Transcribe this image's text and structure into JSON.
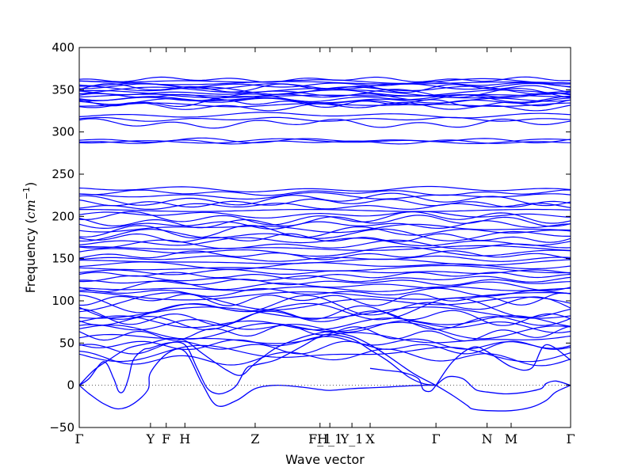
{
  "chart_data": {
    "type": "line",
    "title": "",
    "xlabel": "Wave vector",
    "ylabel": "Frequency (cm⁻¹)",
    "ylabel_parts": {
      "prefix": "Frequency (",
      "unit": "cm",
      "exponent": "−1",
      "suffix": ")"
    },
    "ylim": [
      -50,
      400
    ],
    "yticks": [
      -50,
      0,
      50,
      100,
      150,
      200,
      250,
      300,
      350,
      400
    ],
    "xlim": [
      0,
      1
    ],
    "grid": false,
    "legend": "none",
    "line_color": "#0000ff",
    "zero_line": {
      "y": 0,
      "style": "dotted",
      "color": "#555555"
    },
    "kpoints": [
      {
        "label": "Γ",
        "x": 0.0
      },
      {
        "label": "Y",
        "x": 0.145
      },
      {
        "label": "F",
        "x": 0.177
      },
      {
        "label": "H",
        "x": 0.215
      },
      {
        "label": "Z",
        "x": 0.358
      },
      {
        "label": "F_1",
        "x": 0.49
      },
      {
        "label": "H_1",
        "x": 0.51
      },
      {
        "label": "Y_1",
        "x": 0.555
      },
      {
        "label": "X",
        "x": 0.592
      },
      {
        "label": "Γ",
        "x": 0.726
      },
      {
        "label": "N",
        "x": 0.83
      },
      {
        "label": "M",
        "x": 0.879
      },
      {
        "label": "Γ",
        "x": 1.0
      }
    ],
    "series_acoustic": [
      {
        "x": [
          0.0,
          0.02,
          0.05,
          0.08,
          0.11,
          0.14,
          0.145,
          0.18,
          0.215,
          0.25,
          0.28,
          0.32,
          0.358,
          0.4,
          0.45,
          0.49,
          0.51,
          0.555,
          0.592,
          0.63,
          0.66,
          0.7,
          0.726
        ],
        "y": [
          0,
          -10,
          -22,
          -28,
          -22,
          -5,
          15,
          38,
          40,
          2,
          -24,
          -18,
          -4,
          0,
          -2,
          -5,
          -6,
          -4,
          -3,
          -2,
          -1,
          0,
          0
        ]
      },
      {
        "x": [
          0.0,
          0.02,
          0.05,
          0.07,
          0.08,
          0.09,
          0.1,
          0.11,
          0.13,
          0.145,
          0.18,
          0.215,
          0.24,
          0.26,
          0.28,
          0.3,
          0.32,
          0.34,
          0.358,
          0.4,
          0.45,
          0.49,
          0.51,
          0.555,
          0.592,
          0.63,
          0.67,
          0.7,
          0.726
        ],
        "y": [
          0,
          8,
          28,
          8,
          -7,
          -7,
          8,
          30,
          42,
          44,
          50,
          48,
          20,
          -3,
          -10,
          -8,
          0,
          20,
          24,
          30,
          45,
          58,
          60,
          55,
          42,
          28,
          10,
          2,
          0
        ]
      },
      {
        "x": [
          0.0,
          0.03,
          0.06,
          0.1,
          0.145,
          0.18,
          0.215,
          0.25,
          0.3,
          0.33,
          0.358,
          0.4,
          0.45,
          0.49,
          0.51,
          0.555,
          0.592,
          0.63,
          0.68,
          0.726
        ],
        "y": [
          0,
          18,
          30,
          44,
          50,
          55,
          53,
          38,
          18,
          12,
          26,
          44,
          56,
          62,
          63,
          58,
          48,
          34,
          14,
          0
        ]
      },
      {
        "x": [
          0.726,
          0.76,
          0.79,
          0.8,
          0.83,
          0.879,
          0.92,
          0.95,
          0.97,
          1.0
        ],
        "y": [
          0,
          -12,
          -24,
          -28,
          -30,
          -30,
          -26,
          -18,
          -8,
          0
        ]
      },
      {
        "x": [
          0.726,
          0.75,
          0.78,
          0.8,
          0.81,
          0.83,
          0.86,
          0.879,
          0.91,
          0.94,
          0.95,
          0.97,
          1.0
        ],
        "y": [
          0,
          10,
          8,
          -2,
          -6,
          -8,
          -10,
          -10,
          -8,
          -4,
          2,
          5,
          0
        ]
      },
      {
        "x": [
          0.726,
          0.76,
          0.8,
          0.83,
          0.879,
          0.92,
          0.95,
          1.0
        ],
        "y": [
          0,
          28,
          45,
          40,
          22,
          20,
          48,
          30
        ]
      },
      {
        "x": [
          0.592,
          0.62,
          0.66,
          0.69,
          0.7,
          0.715,
          0.726
        ],
        "y": [
          20,
          18,
          15,
          8,
          -5,
          -7,
          0
        ]
      }
    ],
    "optical_bands_count": 72,
    "optical_band_levels": [
      33,
      38,
      45,
      50,
      55,
      62,
      66,
      70,
      74,
      78,
      82,
      86,
      90,
      94,
      98,
      102,
      106,
      110,
      114,
      118,
      122,
      126,
      130,
      134,
      138,
      142,
      146,
      150,
      154,
      158,
      162,
      166,
      170,
      174,
      178,
      182,
      186,
      190,
      194,
      198,
      202,
      207,
      212,
      216,
      220,
      224,
      228,
      232,
      288,
      289,
      290,
      310,
      315,
      320,
      330,
      334,
      336,
      340,
      343,
      346,
      350,
      354,
      358,
      360,
      342,
      338,
      332,
      348,
      352,
      356,
      362,
      345
    ],
    "optical_band_variation": "bands wiggle by a few cm⁻¹ along the path; lower optical bands (<100 cm⁻¹) cross and disperse more strongly"
  }
}
